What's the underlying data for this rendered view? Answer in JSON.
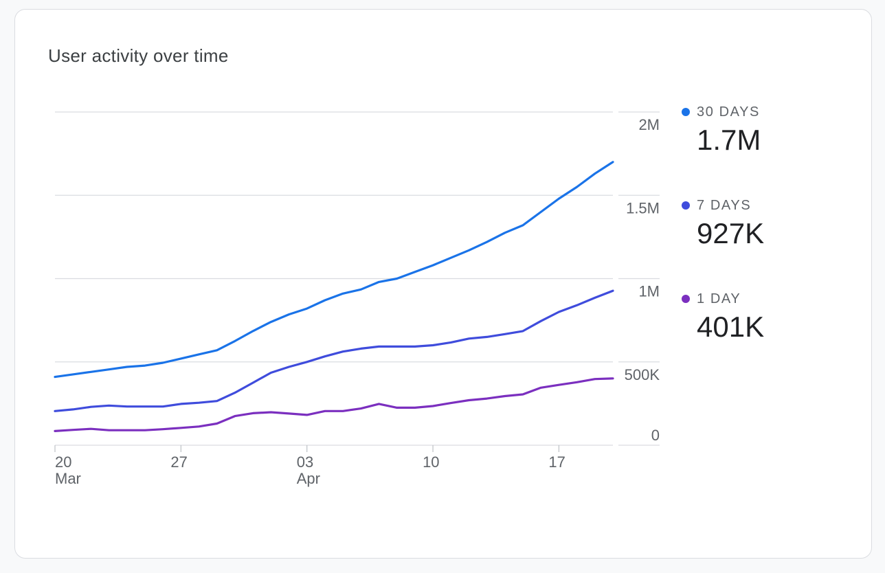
{
  "card": {
    "title": "User activity over time"
  },
  "legend": [
    {
      "label": "30 DAYS",
      "value": "1.7M",
      "color": "#1a73e8"
    },
    {
      "label": "7 DAYS",
      "value": "927K",
      "color": "#3f4cdc"
    },
    {
      "label": "1 DAY",
      "value": "401K",
      "color": "#7b2fbf"
    }
  ],
  "chart_data": {
    "type": "line",
    "title": "User activity over time",
    "xlabel": "",
    "ylabel": "",
    "ylim": [
      0,
      2000000
    ],
    "y_ticks": [
      {
        "value": 0,
        "label": "0"
      },
      {
        "value": 500000,
        "label": "500K"
      },
      {
        "value": 1000000,
        "label": "1M"
      },
      {
        "value": 1500000,
        "label": "1.5M"
      },
      {
        "value": 2000000,
        "label": "2M"
      }
    ],
    "x": [
      "Mar 20",
      "Mar 21",
      "Mar 22",
      "Mar 23",
      "Mar 24",
      "Mar 25",
      "Mar 26",
      "Mar 27",
      "Mar 28",
      "Mar 29",
      "Mar 30",
      "Mar 31",
      "Apr 01",
      "Apr 02",
      "Apr 03",
      "Apr 04",
      "Apr 05",
      "Apr 06",
      "Apr 07",
      "Apr 08",
      "Apr 09",
      "Apr 10",
      "Apr 11",
      "Apr 12",
      "Apr 13",
      "Apr 14",
      "Apr 15",
      "Apr 16",
      "Apr 17",
      "Apr 18",
      "Apr 19",
      "Apr 20"
    ],
    "x_ticks": [
      {
        "index": 0,
        "day": "20",
        "month": "Mar"
      },
      {
        "index": 7,
        "day": "27",
        "month": ""
      },
      {
        "index": 14,
        "day": "03",
        "month": "Apr"
      },
      {
        "index": 21,
        "day": "10",
        "month": ""
      },
      {
        "index": 28,
        "day": "17",
        "month": ""
      }
    ],
    "grid": true,
    "legend_position": "right",
    "series": [
      {
        "name": "30 DAYS",
        "color": "#1a73e8",
        "values": [
          410000,
          425000,
          440000,
          455000,
          470000,
          478000,
          495000,
          520000,
          545000,
          570000,
          625000,
          685000,
          740000,
          785000,
          820000,
          870000,
          910000,
          935000,
          980000,
          1000000,
          1040000,
          1080000,
          1125000,
          1170000,
          1220000,
          1275000,
          1320000,
          1400000,
          1480000,
          1550000,
          1630000,
          1700000
        ]
      },
      {
        "name": "7 DAYS",
        "color": "#3f4cdc",
        "values": [
          205000,
          215000,
          230000,
          238000,
          232000,
          232000,
          232000,
          248000,
          255000,
          265000,
          315000,
          375000,
          435000,
          470000,
          500000,
          533000,
          562000,
          580000,
          592000,
          592000,
          592000,
          600000,
          617000,
          640000,
          650000,
          667000,
          685000,
          745000,
          800000,
          840000,
          885000,
          927000
        ]
      },
      {
        "name": "1 DAY",
        "color": "#7b2fbf",
        "values": [
          85000,
          92000,
          98000,
          90000,
          90000,
          90000,
          96000,
          104000,
          112000,
          130000,
          175000,
          192000,
          198000,
          190000,
          182000,
          205000,
          205000,
          220000,
          248000,
          225000,
          225000,
          235000,
          253000,
          270000,
          280000,
          295000,
          305000,
          345000,
          362000,
          378000,
          397000,
          401000
        ]
      }
    ]
  }
}
